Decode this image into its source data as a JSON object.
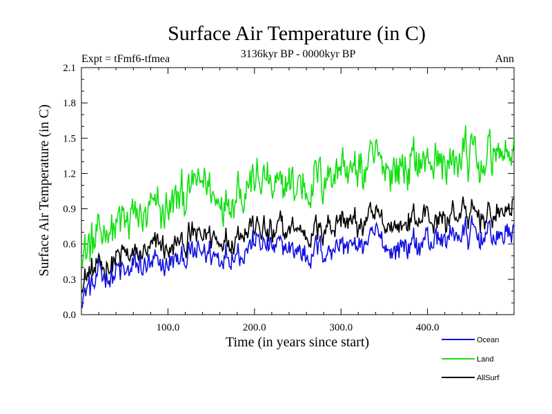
{
  "chart_data": {
    "type": "line",
    "title": "Surface Air Temperature (in C)",
    "subtitle": "3136kyr BP - 0000kyr BP",
    "left_label": "Expt = tFmf6-tfmea",
    "right_label": "Ann",
    "xlabel": "Time (in years since start)",
    "ylabel": "Surface Air Temperature (in C)",
    "xlim": [
      0,
      500
    ],
    "ylim": [
      0.0,
      2.1
    ],
    "x_ticks": [
      100,
      200,
      300,
      400
    ],
    "x_tick_labels": [
      "100.0",
      "200.0",
      "300.0",
      "400.0"
    ],
    "y_ticks": [
      0.0,
      0.3,
      0.6,
      0.9,
      1.2,
      1.5,
      1.8,
      2.1
    ],
    "y_tick_labels": [
      "0.0",
      "0.3",
      "0.6",
      "0.9",
      "1.2",
      "1.5",
      "1.8",
      "2.1"
    ],
    "x_step": 20,
    "series": [
      {
        "name": "Ocean",
        "color": "#1010e0",
        "values": [
          0.15,
          0.3,
          0.33,
          0.38,
          0.4,
          0.43,
          0.47,
          0.55,
          0.5,
          0.52,
          0.62,
          0.55,
          0.58,
          0.52,
          0.56,
          0.6,
          0.58,
          0.64,
          0.56,
          0.6,
          0.64,
          0.62,
          0.7,
          0.66,
          0.68,
          0.72
        ]
      },
      {
        "name": "Land",
        "color": "#10e010",
        "values": [
          0.55,
          0.65,
          0.75,
          0.82,
          0.85,
          0.92,
          1.0,
          1.1,
          0.98,
          1.08,
          1.2,
          1.05,
          1.1,
          1.12,
          1.18,
          1.25,
          1.2,
          1.3,
          1.22,
          1.28,
          1.32,
          1.28,
          1.36,
          1.3,
          1.38,
          1.42
        ]
      },
      {
        "name": "AllSurf",
        "color": "#000000",
        "values": [
          0.28,
          0.4,
          0.45,
          0.52,
          0.55,
          0.58,
          0.62,
          0.7,
          0.63,
          0.68,
          0.78,
          0.68,
          0.72,
          0.7,
          0.74,
          0.8,
          0.76,
          0.84,
          0.74,
          0.8,
          0.84,
          0.8,
          0.88,
          0.82,
          0.86,
          0.92
        ]
      }
    ],
    "legend_position": "bottom-right"
  }
}
